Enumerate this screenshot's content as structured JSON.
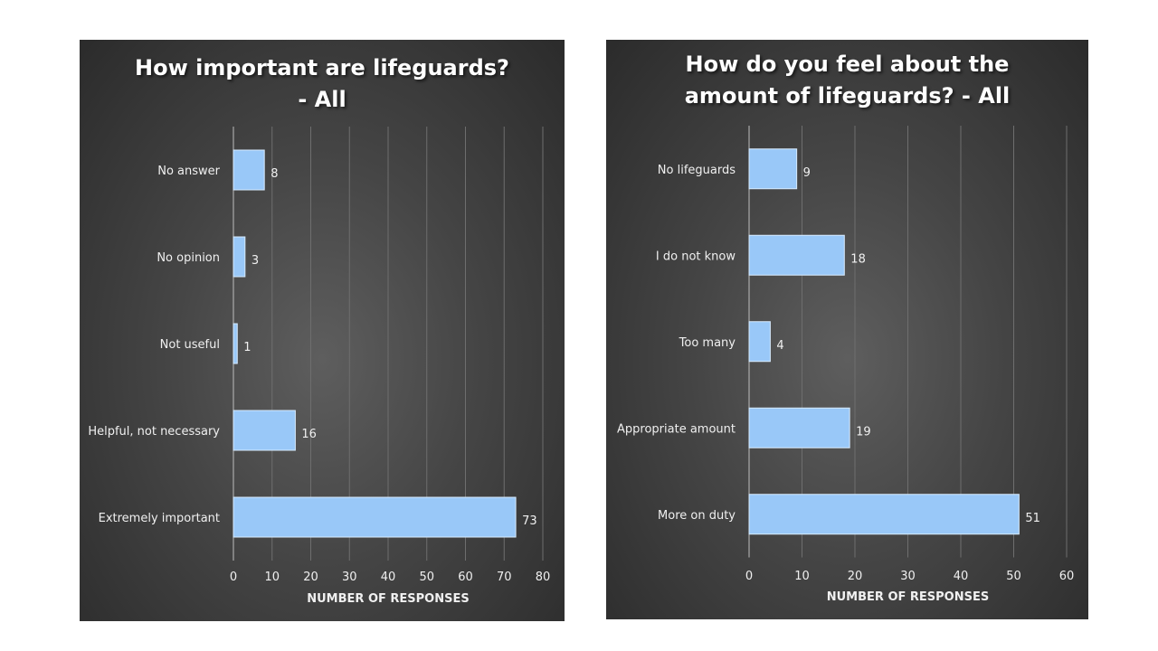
{
  "chart_data": [
    {
      "type": "bar",
      "orientation": "horizontal",
      "title_lines": [
        "How important are lifeguards?",
        "- All"
      ],
      "categories": [
        "No answer",
        "No opinion",
        "Not useful",
        "Helpful, not necessary",
        "Extremely important"
      ],
      "values": [
        8,
        3,
        1,
        16,
        73
      ],
      "xlabel": "NUMBER OF RESPONSES",
      "ylabel": "",
      "xlim": [
        0,
        80
      ],
      "ticks": [
        0,
        10,
        20,
        30,
        40,
        50,
        60,
        70,
        80
      ],
      "grid": "vertical",
      "bar_color": "#99c8f8"
    },
    {
      "type": "bar",
      "orientation": "horizontal",
      "title_lines": [
        "How do you feel about the",
        "amount of lifeguards?  - All"
      ],
      "categories": [
        "No lifeguards",
        "I do not know",
        "Too many",
        "Appropriate amount",
        "More on duty"
      ],
      "values": [
        9,
        18,
        4,
        19,
        51
      ],
      "xlabel": "NUMBER OF RESPONSES",
      "ylabel": "",
      "xlim": [
        0,
        60
      ],
      "ticks": [
        0,
        10,
        20,
        30,
        40,
        50,
        60
      ],
      "grid": "vertical",
      "bar_color": "#99c8f8"
    }
  ]
}
